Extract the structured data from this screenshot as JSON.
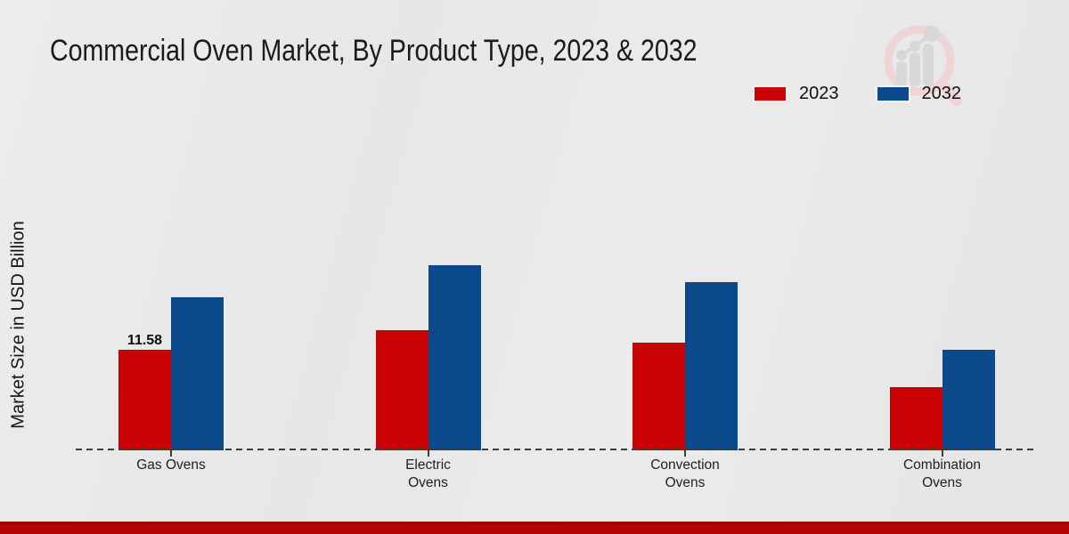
{
  "page": {
    "title": "Commercial Oven Market, By Product Type, 2023 & 2032",
    "ylabel": "Market Size in USD Billion"
  },
  "legend": {
    "position": "top-right",
    "items": [
      {
        "label": "2023",
        "color": "#c80202"
      },
      {
        "label": "2032",
        "color": "#0a4a8a"
      }
    ]
  },
  "branding": {
    "logo_icon": "magnifier-bar-chart-logo",
    "footer_bar_color": "#b50505"
  },
  "chart_data": {
    "type": "bar",
    "title": "Commercial Oven Market, By Product Type, 2023 & 2032",
    "xlabel": "",
    "ylabel": "Market Size in USD Billion",
    "categories": [
      "Gas Ovens",
      "Electric Ovens",
      "Convection Ovens",
      "Combination Ovens"
    ],
    "series": [
      {
        "name": "2023",
        "color": "#c80202",
        "values": [
          11.58,
          13.84,
          12.4,
          7.28
        ]
      },
      {
        "name": "2032",
        "color": "#0a4a8a",
        "values": [
          17.63,
          21.31,
          19.37,
          11.58
        ]
      }
    ],
    "bar_labels": [
      {
        "category_index": 0,
        "series_index": 0,
        "text": "11.58"
      }
    ],
    "ylim": [
      0,
      22
    ],
    "grid": false,
    "axis_style": "dashed-baseline-only",
    "legend_position": "top-right"
  }
}
